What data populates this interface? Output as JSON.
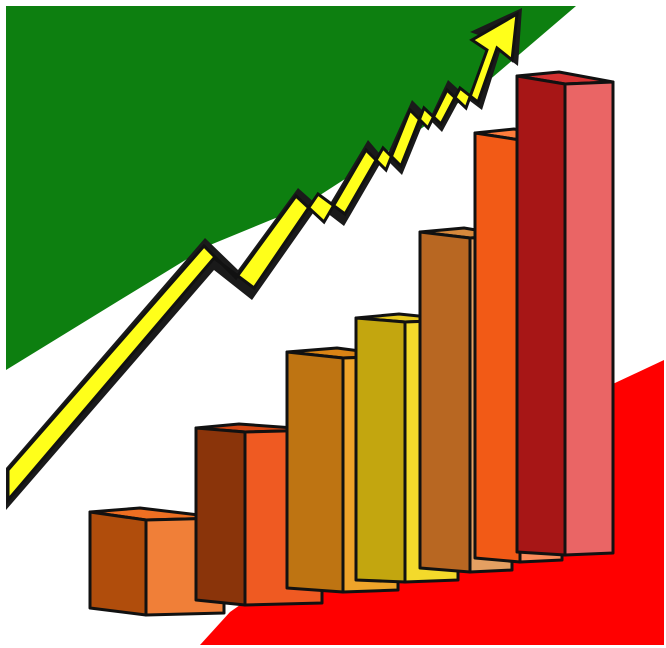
{
  "illustration": {
    "subject": "growth-bar-chart-clipart",
    "bar_count": 7,
    "bar_order": "ascending-left-to-right",
    "arrow_direction": "up-right",
    "colors": {
      "background_green": "#0d7f10",
      "background_white": "#ffffff",
      "background_red": "#ff0000",
      "arrow_fill": "#ffff1a",
      "outline": "#111111",
      "bars": [
        {
          "side": "#b04d0c",
          "front": "#f07f38",
          "top": "#ee6f22"
        },
        {
          "side": "#8a340a",
          "front": "#ef5a22",
          "top": "#d24613"
        },
        {
          "side": "#be7412",
          "front": "#eea42a",
          "top": "#da8415"
        },
        {
          "side": "#c3a60f",
          "front": "#f3da2b",
          "top": "#e6c81e"
        },
        {
          "side": "#b86722",
          "front": "#e4a062",
          "top": "#d7893c"
        },
        {
          "side": "#f25a16",
          "front": "#fb8c5a",
          "top": "#ff7d3c"
        },
        {
          "side": "#a71616",
          "front": "#ea6565",
          "top": "#d43131"
        }
      ]
    }
  }
}
